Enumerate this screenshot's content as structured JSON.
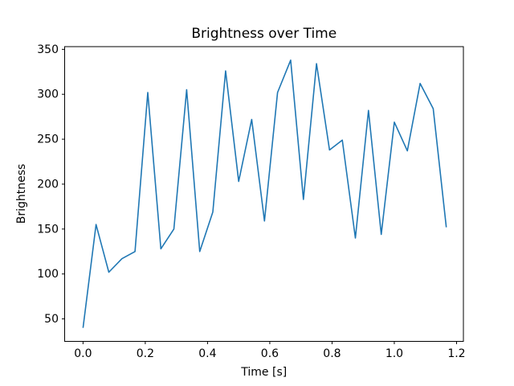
{
  "chart_data": {
    "type": "line",
    "title": "Brightness over Time",
    "xlabel": "Time [s]",
    "ylabel": "Brightness",
    "line_color": "#1f77b4",
    "background_color": "#ffffff",
    "grid": false,
    "legend_position": "none",
    "xlim": [
      -0.059,
      1.222
    ],
    "ylim": [
      25,
      353
    ],
    "xtick_values": [
      0.0,
      0.2,
      0.4,
      0.6,
      0.8,
      1.0,
      1.2
    ],
    "xtick_labels": [
      "0.0",
      "0.2",
      "0.4",
      "0.6",
      "0.8",
      "1.0",
      "1.2"
    ],
    "ytick_values": [
      50,
      100,
      150,
      200,
      250,
      300,
      350
    ],
    "ytick_labels": [
      "50",
      "100",
      "150",
      "200",
      "250",
      "300",
      "350"
    ],
    "x": [
      0.0,
      0.042,
      0.083,
      0.125,
      0.167,
      0.208,
      0.25,
      0.292,
      0.333,
      0.375,
      0.417,
      0.458,
      0.5,
      0.542,
      0.583,
      0.625,
      0.667,
      0.708,
      0.75,
      0.792,
      0.833,
      0.875,
      0.917,
      0.958,
      1.0,
      1.042,
      1.083,
      1.125,
      1.167
    ],
    "values": [
      40,
      155,
      102,
      117,
      125,
      302,
      128,
      150,
      305,
      125,
      169,
      326,
      203,
      272,
      159,
      302,
      338,
      183,
      334,
      238,
      249,
      140,
      282,
      144,
      269,
      237,
      312,
      284,
      152
    ]
  }
}
